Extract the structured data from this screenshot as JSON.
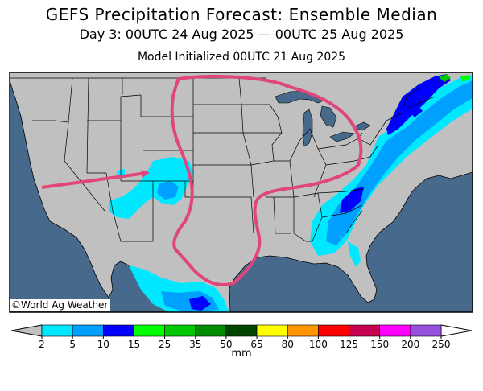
{
  "header": {
    "title": "GEFS Precipitation Forecast: Ensemble Median",
    "valid_period": "Day 3: 00UTC 24 Aug 2025 — 00UTC 25 Aug 2025",
    "init": "Model Initialized 00UTC 21 Aug 2025"
  },
  "map": {
    "credit": "©World Ag Weather",
    "ocean_color": "#46698c",
    "land_color": "#c0c0c0",
    "annotation_color": "#e0457b",
    "annotations": [
      "arrow",
      "outlined-region"
    ]
  },
  "legend": {
    "unit": "mm",
    "under_color": "#c0c0c0",
    "over_color": "#ffffff",
    "ticks": [
      "2",
      "5",
      "10",
      "15",
      "25",
      "35",
      "50",
      "65",
      "80",
      "100",
      "125",
      "150",
      "200",
      "250"
    ],
    "colors": [
      "#00e8ff",
      "#00a0ff",
      "#0000ff",
      "#00ff00",
      "#00c800",
      "#008c00",
      "#004600",
      "#ffff00",
      "#ff9600",
      "#ff0000",
      "#c80050",
      "#ff00ff",
      "#9650dc"
    ]
  }
}
